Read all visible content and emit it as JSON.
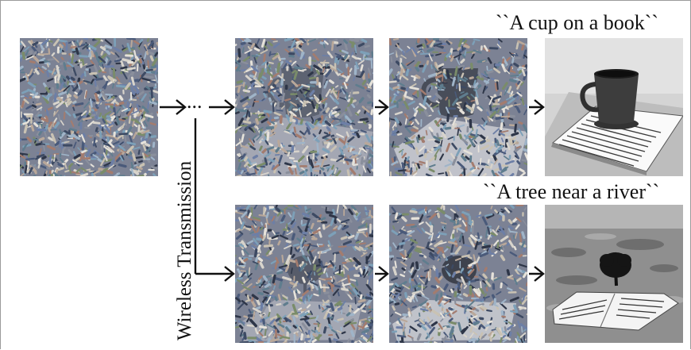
{
  "prompts": {
    "top": "``A cup on a book``",
    "bottom": "``A tree near a river``"
  },
  "channel_label": "Wireless Transmission",
  "ellipsis": "...",
  "colors": {
    "arrow": "#111111",
    "frame": "#9a9a9a"
  }
}
